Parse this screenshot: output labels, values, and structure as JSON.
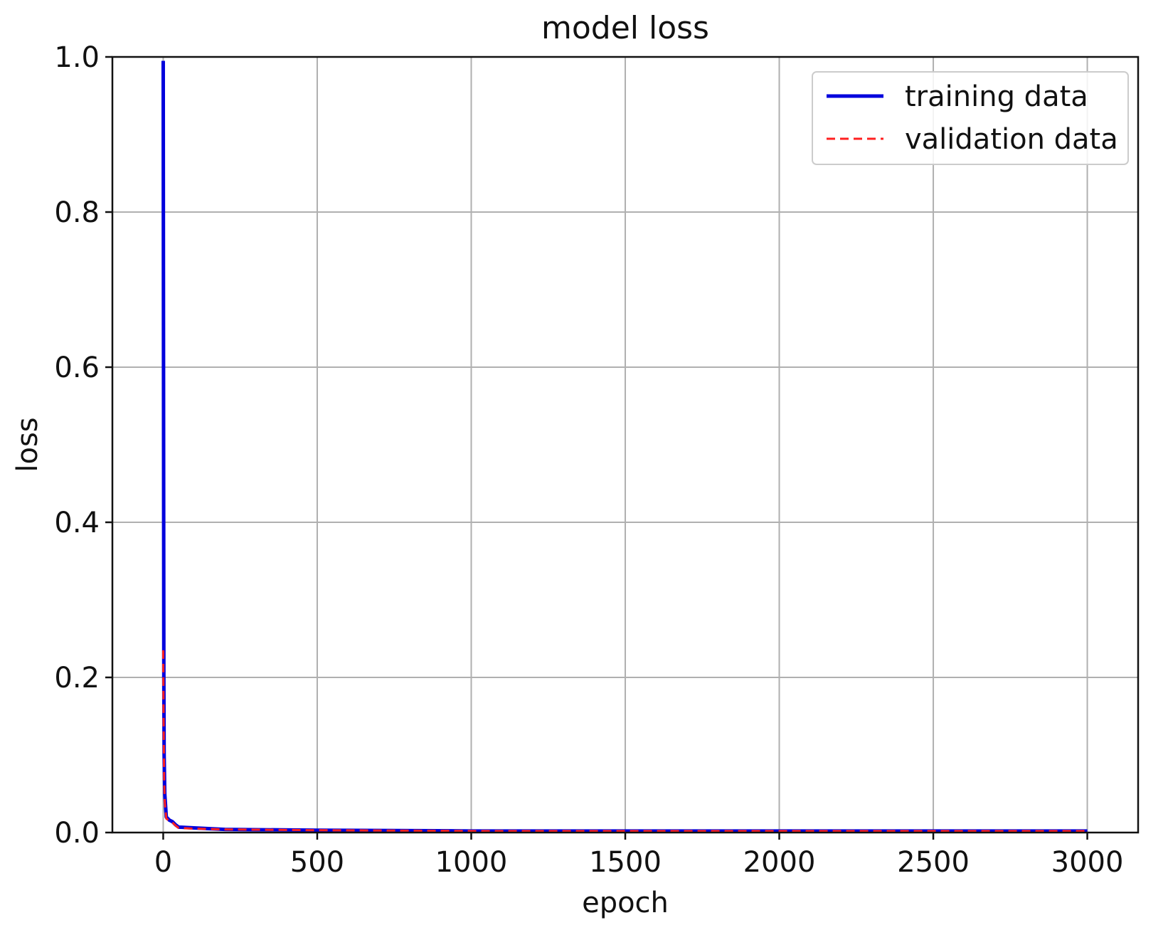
{
  "chart_data": {
    "type": "line",
    "title": "model loss",
    "xlabel": "epoch",
    "ylabel": "loss",
    "xlim": [
      -165,
      3165
    ],
    "ylim": [
      0.0,
      1.0
    ],
    "xticks": [
      0,
      500,
      1000,
      1500,
      2000,
      2500,
      3000
    ],
    "xtick_labels": [
      "0",
      "500",
      "1000",
      "1500",
      "2000",
      "2500",
      "3000"
    ],
    "yticks": [
      0.0,
      0.2,
      0.4,
      0.6,
      0.8,
      1.0
    ],
    "ytick_labels": [
      "0.0",
      "0.2",
      "0.4",
      "0.6",
      "0.8",
      "1.0"
    ],
    "grid": true,
    "legend_position": "top-right",
    "series": [
      {
        "name": "training data",
        "color": "#0000dd",
        "style": "solid",
        "x": [
          0,
          1,
          2,
          3,
          5,
          10,
          20,
          30,
          40,
          50,
          100,
          200,
          500,
          1000,
          1500,
          2000,
          2500,
          3000
        ],
        "y": [
          0.995,
          0.6,
          0.2,
          0.1,
          0.05,
          0.02,
          0.016,
          0.014,
          0.01,
          0.007,
          0.006,
          0.004,
          0.003,
          0.002,
          0.002,
          0.002,
          0.002,
          0.002
        ]
      },
      {
        "name": "validation data",
        "color": "#ff2020",
        "style": "dashed",
        "x": [
          0,
          1,
          2,
          3,
          5,
          10,
          20,
          30,
          40,
          50,
          100,
          200,
          500,
          1000,
          1500,
          2000,
          2500,
          3000
        ],
        "y": [
          0.235,
          0.16,
          0.11,
          0.07,
          0.04,
          0.018,
          0.015,
          0.013,
          0.009,
          0.006,
          0.005,
          0.004,
          0.003,
          0.002,
          0.002,
          0.002,
          0.002,
          0.002
        ]
      }
    ]
  }
}
